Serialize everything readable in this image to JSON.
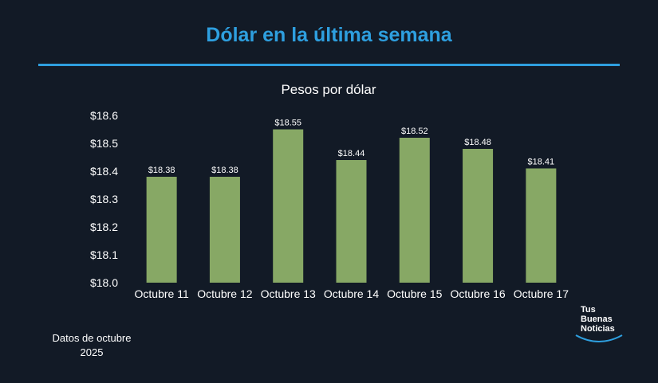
{
  "header": {
    "title": "Dólar en la última semana",
    "accent_color": "#2e9fdf"
  },
  "chart_data": {
    "type": "bar",
    "title": "Pesos por dólar",
    "categories": [
      "Octubre 11",
      "Octubre 12",
      "Octubre 13",
      "Octubre 14",
      "Octubre 15",
      "Octubre 16",
      "Octubre 17"
    ],
    "values": [
      18.38,
      18.38,
      18.55,
      18.44,
      18.52,
      18.48,
      18.41
    ],
    "data_labels": [
      "$18.38",
      "$18.38",
      "$18.55",
      "$18.44",
      "$18.52",
      "$18.48",
      "$18.41"
    ],
    "yticks": [
      18.0,
      18.1,
      18.2,
      18.3,
      18.4,
      18.5,
      18.6
    ],
    "ytick_labels": [
      "$18.0",
      "$18.1",
      "$18.2",
      "$18.3",
      "$18.4",
      "$18.5",
      "$18.6"
    ],
    "ylim": [
      18.0,
      18.6
    ],
    "bar_color": "#87a865",
    "grid": false,
    "legend": "none"
  },
  "footnote": {
    "line1": "Datos de octubre",
    "line2": "2025"
  },
  "logo": {
    "line1": "Tus",
    "line2": "Buenas",
    "line3": "Noticias"
  }
}
